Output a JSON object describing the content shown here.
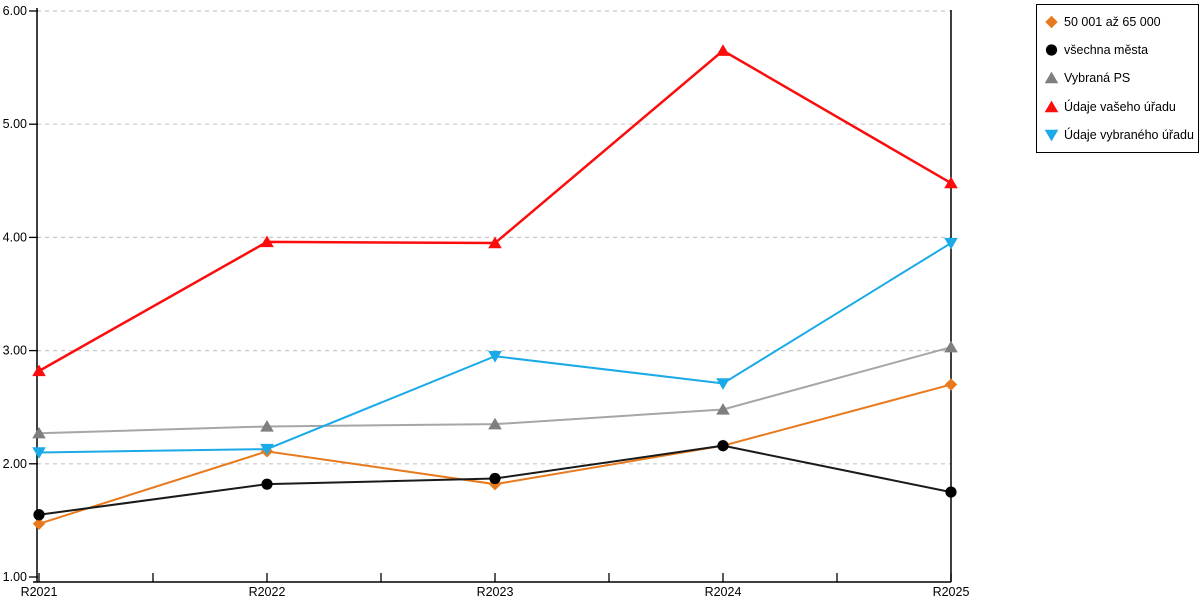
{
  "chart_data": {
    "type": "line",
    "title": "",
    "categories": [
      "R2021",
      "R2022",
      "R2023",
      "R2024",
      "R2025"
    ],
    "series": [
      {
        "name": "50 001 až 65 000",
        "color": "#E8791D",
        "line_color": "#E8791D",
        "marker": "diamond",
        "line_width": 2,
        "values": [
          1.47,
          2.11,
          1.82,
          2.16,
          2.7
        ]
      },
      {
        "name": "všechna města",
        "color": "#000000",
        "line_color": "#1A1A1A",
        "marker": "circle",
        "line_width": 2,
        "values": [
          1.55,
          1.82,
          1.87,
          2.16,
          1.75
        ]
      },
      {
        "name": "Vybraná PS",
        "color": "#7F7F7F",
        "line_color": "#A6A6A6",
        "marker": "triangle-up",
        "line_width": 2,
        "values": [
          2.27,
          2.33,
          2.35,
          2.48,
          3.03
        ]
      },
      {
        "name": "Údaje vašeho úřadu",
        "color": "#FB0D0D",
        "line_color": "#FB0D0D",
        "marker": "triangle-up",
        "line_width": 2.5,
        "values": [
          2.82,
          3.96,
          3.95,
          5.65,
          4.48
        ]
      },
      {
        "name": "Údaje vybraného úřadu",
        "color": "#1BAAE8",
        "line_color": "#1BAAE8",
        "marker": "triangle-down",
        "line_width": 2,
        "values": [
          2.1,
          2.13,
          2.95,
          2.71,
          3.95
        ]
      }
    ],
    "ylim": [
      1,
      6
    ],
    "ytick_step": 1,
    "ytick_labels": [
      "1.00",
      "2.00",
      "3.00",
      "4.00",
      "5.00",
      "6.00"
    ],
    "grid": "dashed-horizontal",
    "grid_color": "#C8C8C8",
    "axis_color": "#000000",
    "background": "#FFFFFF",
    "legend_position": "top-right"
  }
}
